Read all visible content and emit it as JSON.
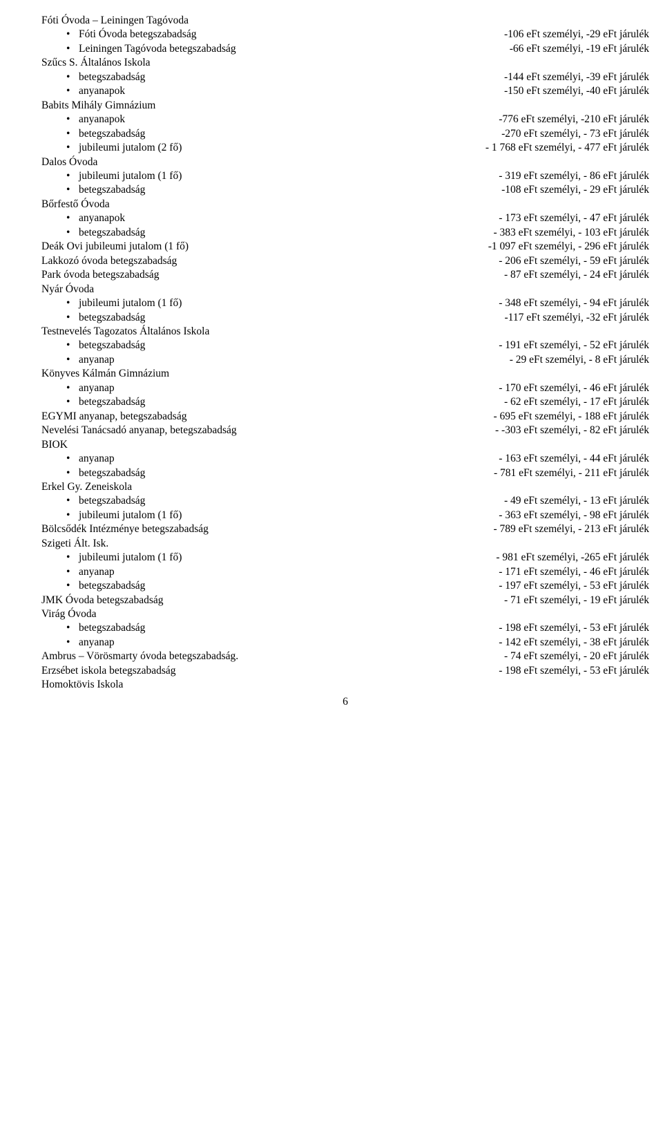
{
  "lines": [
    {
      "type": "plain",
      "left": "Fóti Óvoda – Leiningen Tagóvoda",
      "right": ""
    },
    {
      "type": "bullet",
      "left": "Fóti Óvoda betegszabadság",
      "right": "-106 eFt személyi, -29 eFt járulék"
    },
    {
      "type": "bullet",
      "left": "Leiningen Tagóvoda betegszabadság",
      "right": "-66 eFt személyi, -19 eFt járulék"
    },
    {
      "type": "plain",
      "left": "Szűcs S. Általános Iskola",
      "right": ""
    },
    {
      "type": "bullet",
      "left": "betegszabadság",
      "right": "-144 eFt személyi, -39 eFt járulék"
    },
    {
      "type": "bullet",
      "left": "anyanapok",
      "right": "-150 eFt személyi, -40 eFt járulék"
    },
    {
      "type": "plain",
      "left": "Babits Mihály Gimnázium",
      "right": ""
    },
    {
      "type": "bullet",
      "left": "anyanapok",
      "right": "-776 eFt személyi, -210 eFt járulék"
    },
    {
      "type": "bullet",
      "left": "betegszabadság",
      "right": "-270 eFt személyi, - 73 eFt járulék"
    },
    {
      "type": "bullet",
      "left": "jubileumi jutalom (2 fő)",
      "right": "- 1 768 eFt személyi, - 477 eFt járulék"
    },
    {
      "type": "plain",
      "left": "Dalos Óvoda",
      "right": ""
    },
    {
      "type": "bullet",
      "left": "jubileumi jutalom (1 fő)",
      "right": "- 319 eFt személyi, - 86 eFt járulék"
    },
    {
      "type": "bullet",
      "left": "betegszabadság",
      "right": "-108 eFt személyi, - 29 eFt járulék"
    },
    {
      "type": "plain",
      "left": "Bőrfestő Óvoda",
      "right": ""
    },
    {
      "type": "bullet",
      "left": "anyanapok",
      "right": "- 173 eFt személyi, - 47 eFt járulék"
    },
    {
      "type": "bullet",
      "left": "betegszabadság",
      "right": "- 383 eFt személyi, - 103 eFt járulék"
    },
    {
      "type": "plain",
      "left": "Deák Ovi jubileumi jutalom (1 fő)",
      "right": "-1 097 eFt személyi, - 296 eFt járulék"
    },
    {
      "type": "plain",
      "left": "Lakkozó óvoda betegszabadság",
      "right": "- 206 eFt személyi, - 59 eFt járulék"
    },
    {
      "type": "plain",
      "left": "Park óvoda betegszabadság",
      "right": "- 87 eFt személyi, - 24 eFt járulék"
    },
    {
      "type": "plain",
      "left": "Nyár Óvoda",
      "right": ""
    },
    {
      "type": "bullet",
      "left": "jubileumi jutalom (1 fő)",
      "right": "- 348 eFt személyi, - 94 eFt járulék"
    },
    {
      "type": "bullet",
      "left": "betegszabadság",
      "right": "-117 eFt személyi, -32 eFt járulék"
    },
    {
      "type": "plain",
      "left": "Testnevelés Tagozatos Általános Iskola",
      "right": ""
    },
    {
      "type": "bullet",
      "left": "betegszabadság",
      "right": "- 191 eFt személyi, - 52 eFt járulék"
    },
    {
      "type": "bullet",
      "left": "anyanap",
      "right": "- 29 eFt személyi, - 8 eFt járulék"
    },
    {
      "type": "plain",
      "left": "Könyves Kálmán Gimnázium",
      "right": ""
    },
    {
      "type": "bullet",
      "left": "anyanap",
      "right": "- 170 eFt személyi, - 46 eFt járulék"
    },
    {
      "type": "bullet",
      "left": "betegszabadság",
      "right": "- 62 eFt személyi, - 17 eFt járulék"
    },
    {
      "type": "plain",
      "left": "EGYMI anyanap, betegszabadság",
      "right": "- 695 eFt személyi, - 188 eFt járulék"
    },
    {
      "type": "plain",
      "left": "Nevelési Tanácsadó anyanap, betegszabadság",
      "right": "- -303 eFt személyi, - 82 eFt járulék"
    },
    {
      "type": "plain",
      "left": "BIOK",
      "right": ""
    },
    {
      "type": "bullet",
      "left": "anyanap",
      "right": "- 163 eFt személyi, - 44 eFt járulék"
    },
    {
      "type": "bullet",
      "left": "betegszabadság",
      "right": "- 781 eFt személyi, - 211 eFt járulék"
    },
    {
      "type": "plain",
      "left": "Erkel Gy. Zeneiskola",
      "right": ""
    },
    {
      "type": "bullet",
      "left": "betegszabadság",
      "right": "- 49 eFt személyi, - 13 eFt járulék"
    },
    {
      "type": "bullet",
      "left": "jubileumi jutalom (1 fő)",
      "right": "- 363 eFt személyi, - 98 eFt járulék"
    },
    {
      "type": "plain",
      "left": "Bölcsődék Intézménye betegszabadság",
      "right": "- 789 eFt személyi, - 213 eFt járulék"
    },
    {
      "type": "plain",
      "left": "Szigeti Ált. Isk.",
      "right": ""
    },
    {
      "type": "bullet",
      "left": "jubileumi jutalom (1 fő)",
      "right": "- 981 eFt személyi, -265 eFt járulék"
    },
    {
      "type": "bullet",
      "left": "anyanap",
      "right": "- 171 eFt személyi, - 46 eFt járulék"
    },
    {
      "type": "bullet",
      "left": "betegszabadság",
      "right": "- 197 eFt személyi, - 53 eFt járulék"
    },
    {
      "type": "plain",
      "left": "JMK Óvoda betegszabadság",
      "right": "- 71 eFt személyi, - 19 eFt járulék"
    },
    {
      "type": "plain",
      "left": "Virág Óvoda",
      "right": ""
    },
    {
      "type": "bullet",
      "left": "betegszabadság",
      "right": "- 198 eFt személyi, - 53 eFt járulék"
    },
    {
      "type": "bullet",
      "left": "anyanap",
      "right": "- 142 eFt személyi, - 38 eFt járulék"
    },
    {
      "type": "plain",
      "left": "Ambrus – Vörösmarty óvoda betegszabadság.",
      "right": "- 74 eFt személyi, - 20 eFt járulék"
    },
    {
      "type": "plain",
      "left": "Erzsébet iskola betegszabadság",
      "right": "- 198 eFt személyi, - 53 eFt járulék"
    },
    {
      "type": "plain",
      "left": "Homoktövis Iskola",
      "right": ""
    }
  ],
  "pageNumber": "6",
  "bulletChar": "•"
}
